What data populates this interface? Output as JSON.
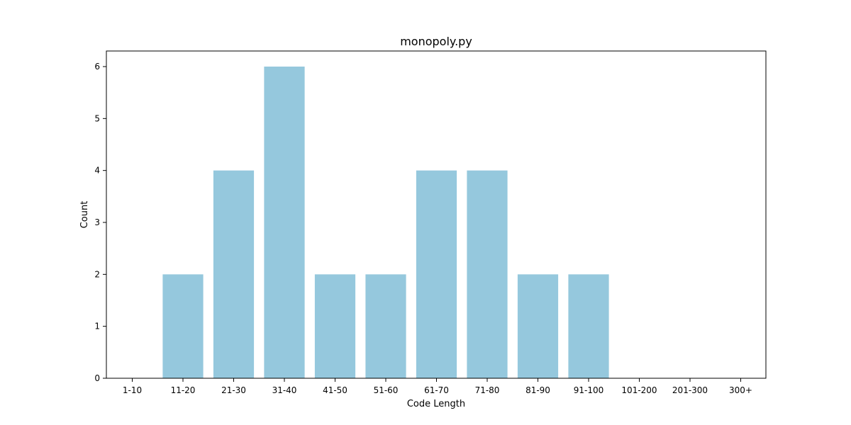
{
  "chart_data": {
    "type": "bar",
    "title": "monopoly.py",
    "xlabel": "Code Length",
    "ylabel": "Count",
    "categories": [
      "1-10",
      "11-20",
      "21-30",
      "31-40",
      "41-50",
      "51-60",
      "61-70",
      "71-80",
      "81-90",
      "91-100",
      "101-200",
      "201-300",
      "300+"
    ],
    "values": [
      0,
      2,
      4,
      6,
      2,
      2,
      4,
      4,
      2,
      2,
      0,
      0,
      0
    ],
    "yticks": [
      0,
      1,
      2,
      3,
      4,
      5,
      6
    ],
    "ylim": [
      0,
      6.3
    ],
    "bar_color": "#95c8dd",
    "grid": false,
    "legend": "none"
  }
}
